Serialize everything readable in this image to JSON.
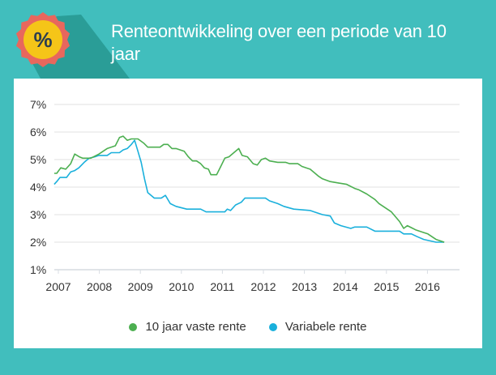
{
  "header": {
    "title": "Renteontwikkeling over een periode van 10 jaar",
    "badge_symbol": "%",
    "colors": {
      "background": "#41bebd",
      "badge_outer": "#e8675d",
      "badge_inner": "#f5c518",
      "shadow": "#2a9d97"
    }
  },
  "chart_data": {
    "type": "line",
    "title": "Renteontwikkeling over een periode van 10 jaar",
    "xlabel": "",
    "ylabel": "",
    "xlim": [
      2006.9,
      2016.9
    ],
    "ylim": [
      1,
      7
    ],
    "x_ticks": [
      "2007",
      "2008",
      "2009",
      "2010",
      "2011",
      "2012",
      "2013",
      "2014",
      "2015",
      "2016"
    ],
    "y_ticks": [
      "1%",
      "2%",
      "3%",
      "4%",
      "5%",
      "6%",
      "7%"
    ],
    "grid": true,
    "legend": "bottom",
    "series": [
      {
        "name": "10 jaar vaste rente",
        "color": "#4caf50",
        "points": [
          [
            2006.9,
            4.5
          ],
          [
            2006.96,
            4.5
          ],
          [
            2007.06,
            4.7
          ],
          [
            2007.18,
            4.65
          ],
          [
            2007.3,
            4.85
          ],
          [
            2007.4,
            5.2
          ],
          [
            2007.51,
            5.1
          ],
          [
            2007.59,
            5.05
          ],
          [
            2007.79,
            5.05
          ],
          [
            2007.99,
            5.2
          ],
          [
            2008.19,
            5.4
          ],
          [
            2008.39,
            5.5
          ],
          [
            2008.49,
            5.8
          ],
          [
            2008.58,
            5.85
          ],
          [
            2008.68,
            5.7
          ],
          [
            2008.78,
            5.75
          ],
          [
            2008.94,
            5.75
          ],
          [
            2009.08,
            5.6
          ],
          [
            2009.18,
            5.45
          ],
          [
            2009.38,
            5.45
          ],
          [
            2009.48,
            5.45
          ],
          [
            2009.57,
            5.55
          ],
          [
            2009.67,
            5.55
          ],
          [
            2009.77,
            5.4
          ],
          [
            2009.87,
            5.4
          ],
          [
            2010.07,
            5.3
          ],
          [
            2010.17,
            5.1
          ],
          [
            2010.27,
            4.95
          ],
          [
            2010.37,
            4.95
          ],
          [
            2010.47,
            4.85
          ],
          [
            2010.56,
            4.7
          ],
          [
            2010.66,
            4.65
          ],
          [
            2010.72,
            4.45
          ],
          [
            2010.86,
            4.45
          ],
          [
            2010.96,
            4.75
          ],
          [
            2011.06,
            5.05
          ],
          [
            2011.16,
            5.1
          ],
          [
            2011.32,
            5.3
          ],
          [
            2011.4,
            5.4
          ],
          [
            2011.48,
            5.15
          ],
          [
            2011.61,
            5.1
          ],
          [
            2011.75,
            4.85
          ],
          [
            2011.85,
            4.8
          ],
          [
            2011.95,
            5.0
          ],
          [
            2012.05,
            5.05
          ],
          [
            2012.15,
            4.95
          ],
          [
            2012.35,
            4.9
          ],
          [
            2012.54,
            4.9
          ],
          [
            2012.64,
            4.85
          ],
          [
            2012.84,
            4.85
          ],
          [
            2012.94,
            4.75
          ],
          [
            2013.14,
            4.65
          ],
          [
            2013.34,
            4.4
          ],
          [
            2013.44,
            4.3
          ],
          [
            2013.63,
            4.2
          ],
          [
            2013.83,
            4.15
          ],
          [
            2014.03,
            4.1
          ],
          [
            2014.23,
            3.95
          ],
          [
            2014.33,
            3.9
          ],
          [
            2014.52,
            3.75
          ],
          [
            2014.72,
            3.55
          ],
          [
            2014.82,
            3.4
          ],
          [
            2014.92,
            3.3
          ],
          [
            2015.12,
            3.1
          ],
          [
            2015.32,
            2.75
          ],
          [
            2015.42,
            2.5
          ],
          [
            2015.51,
            2.6
          ],
          [
            2015.71,
            2.45
          ],
          [
            2015.91,
            2.35
          ],
          [
            2016.01,
            2.3
          ],
          [
            2016.21,
            2.1
          ],
          [
            2016.41,
            2.0
          ]
        ]
      },
      {
        "name": "Variabele rente",
        "color": "#1ab0dc",
        "points": [
          [
            2006.9,
            4.1
          ],
          [
            2006.96,
            4.2
          ],
          [
            2007.04,
            4.35
          ],
          [
            2007.2,
            4.35
          ],
          [
            2007.3,
            4.55
          ],
          [
            2007.4,
            4.6
          ],
          [
            2007.5,
            4.7
          ],
          [
            2007.63,
            4.9
          ],
          [
            2007.75,
            5.05
          ],
          [
            2007.89,
            5.1
          ],
          [
            2007.99,
            5.15
          ],
          [
            2008.19,
            5.15
          ],
          [
            2008.29,
            5.25
          ],
          [
            2008.49,
            5.25
          ],
          [
            2008.58,
            5.35
          ],
          [
            2008.68,
            5.4
          ],
          [
            2008.78,
            5.55
          ],
          [
            2008.86,
            5.7
          ],
          [
            2008.94,
            5.3
          ],
          [
            2009.02,
            4.9
          ],
          [
            2009.1,
            4.3
          ],
          [
            2009.18,
            3.8
          ],
          [
            2009.34,
            3.6
          ],
          [
            2009.51,
            3.6
          ],
          [
            2009.61,
            3.7
          ],
          [
            2009.73,
            3.4
          ],
          [
            2009.87,
            3.3
          ],
          [
            2010.13,
            3.2
          ],
          [
            2010.47,
            3.2
          ],
          [
            2010.6,
            3.1
          ],
          [
            2011.06,
            3.1
          ],
          [
            2011.12,
            3.2
          ],
          [
            2011.2,
            3.15
          ],
          [
            2011.32,
            3.35
          ],
          [
            2011.46,
            3.45
          ],
          [
            2011.55,
            3.6
          ],
          [
            2012.05,
            3.6
          ],
          [
            2012.15,
            3.5
          ],
          [
            2012.35,
            3.4
          ],
          [
            2012.5,
            3.3
          ],
          [
            2012.74,
            3.2
          ],
          [
            2013.14,
            3.15
          ],
          [
            2013.24,
            3.1
          ],
          [
            2013.44,
            3.0
          ],
          [
            2013.63,
            2.95
          ],
          [
            2013.73,
            2.7
          ],
          [
            2013.89,
            2.6
          ],
          [
            2014.13,
            2.5
          ],
          [
            2014.23,
            2.55
          ],
          [
            2014.52,
            2.55
          ],
          [
            2014.72,
            2.4
          ],
          [
            2015.32,
            2.4
          ],
          [
            2015.42,
            2.3
          ],
          [
            2015.61,
            2.3
          ],
          [
            2015.75,
            2.2
          ],
          [
            2015.91,
            2.1
          ],
          [
            2016.21,
            2.0
          ],
          [
            2016.41,
            2.0
          ]
        ]
      }
    ]
  }
}
